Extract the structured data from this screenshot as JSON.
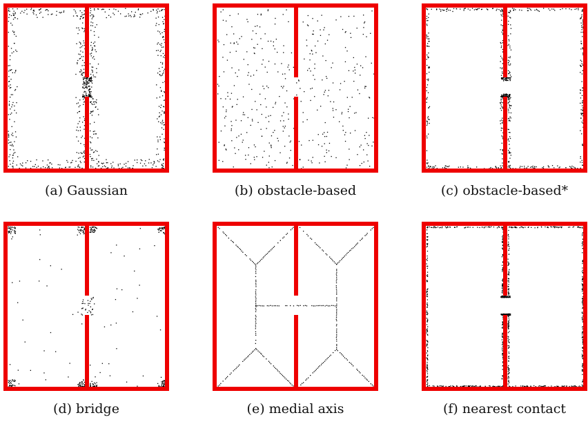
{
  "colors": {
    "wall": "#ee0000",
    "sample": "#000000",
    "background": "#ffffff"
  },
  "panels": [
    {
      "id": "a",
      "caption": "(a)  Gaussian",
      "sampler": "gaussian"
    },
    {
      "id": "b",
      "caption": "(b)  obstacle-based",
      "sampler": "uniform"
    },
    {
      "id": "c",
      "caption": "(c)  obstacle-based*",
      "sampler": "border"
    },
    {
      "id": "d",
      "caption": "(d)  bridge",
      "sampler": "bridge"
    },
    {
      "id": "e",
      "caption": "(e)  medial axis",
      "sampler": "medial"
    },
    {
      "id": "f",
      "caption": "(f)  nearest contact",
      "sampler": "contact"
    }
  ]
}
